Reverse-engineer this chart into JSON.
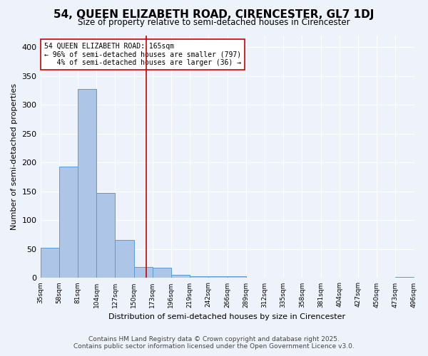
{
  "title": "54, QUEEN ELIZABETH ROAD, CIRENCESTER, GL7 1DJ",
  "subtitle": "Size of property relative to semi-detached houses in Cirencester",
  "xlabel": "Distribution of semi-detached houses by size in Cirencester",
  "ylabel": "Number of semi-detached properties",
  "bar_values": [
    52,
    193,
    328,
    147,
    66,
    19,
    18,
    6,
    3,
    3,
    3,
    0,
    0,
    0,
    0,
    0,
    0,
    0,
    0,
    2
  ],
  "bin_edges": [
    "35sqm",
    "58sqm",
    "81sqm",
    "104sqm",
    "127sqm",
    "150sqm",
    "173sqm",
    "196sqm",
    "219sqm",
    "242sqm",
    "266sqm",
    "289sqm",
    "312sqm",
    "335sqm",
    "358sqm",
    "381sqm",
    "404sqm",
    "427sqm",
    "450sqm",
    "473sqm",
    "496sqm"
  ],
  "bar_color": "#adc6e8",
  "bar_edge_color": "#5b9bd5",
  "background_color": "#eef2fb",
  "grid_color": "#ffffff",
  "annotation_text": "54 QUEEN ELIZABETH ROAD: 165sqm\n← 96% of semi-detached houses are smaller (797)\n   4% of semi-detached houses are larger (36) →",
  "vline_position": 5.65,
  "vline_color": "#cc0000",
  "annotation_box_color": "#ffffff",
  "annotation_box_edge": "#cc0000",
  "footer_line1": "Contains HM Land Registry data © Crown copyright and database right 2025.",
  "footer_line2": "Contains public sector information licensed under the Open Government Licence v3.0.",
  "ylim": [
    0,
    420
  ],
  "yticks": [
    0,
    50,
    100,
    150,
    200,
    250,
    300,
    350,
    400
  ]
}
